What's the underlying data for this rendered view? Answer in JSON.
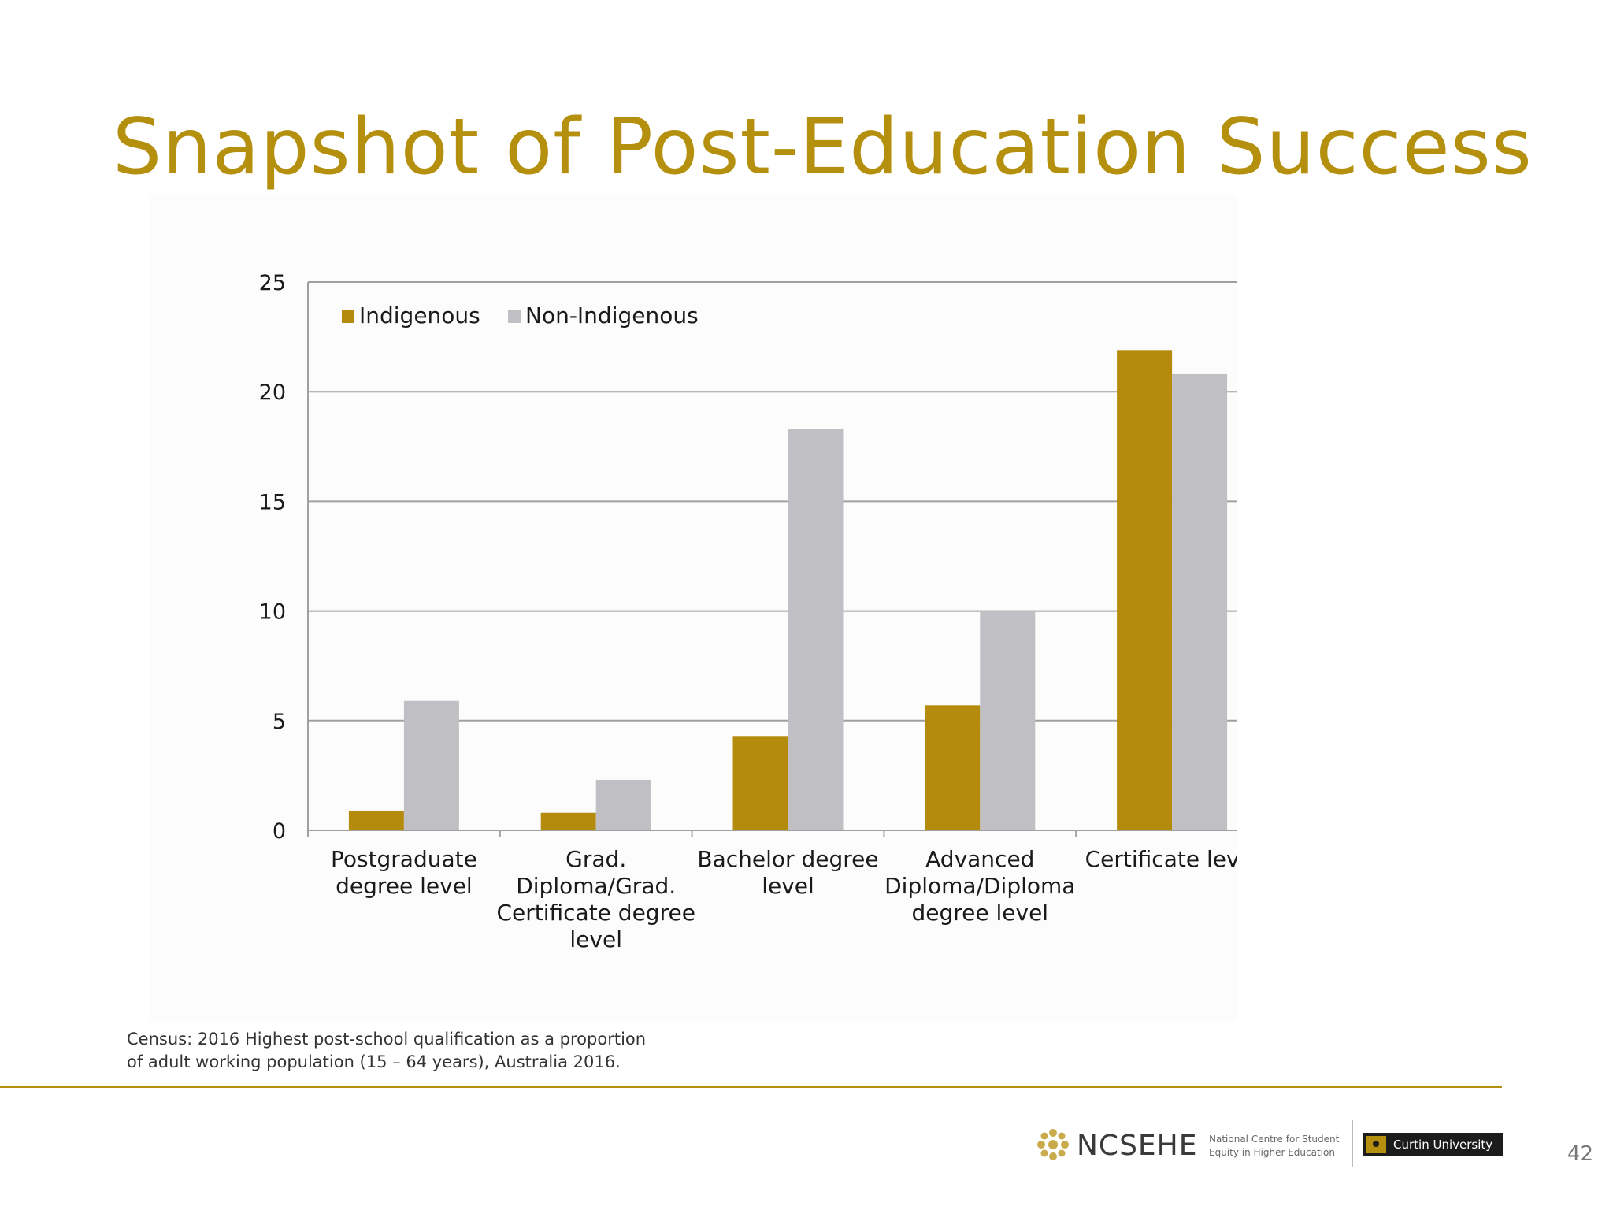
{
  "slide": {
    "title": "Snapshot of Post-Education Success",
    "page_number": "42"
  },
  "source_note": [
    "Census: 2016 Highest post-school qualification as a proportion",
    "of adult working population (15 – 64 years), Australia 2016."
  ],
  "footer": {
    "org_name": "NCSEHE",
    "org_tagline": [
      "National Centre for Student",
      "Equity in Higher Education"
    ],
    "university": "Curtin University"
  },
  "colors": {
    "accent": "#b5900f",
    "indigenous": "#b58b0e",
    "non_indigenous": "#c0bfc3",
    "gridline": "#a0a0a0"
  },
  "chart_data": {
    "type": "bar",
    "categories": [
      [
        "Postgraduate",
        "degree level"
      ],
      [
        "Grad.",
        "Diploma/Grad.",
        "Certificate degree",
        "level"
      ],
      [
        "Bachelor degree",
        "level"
      ],
      [
        "Advanced",
        "Diploma/Diploma",
        "degree level"
      ],
      [
        "Certificate level"
      ]
    ],
    "series": [
      {
        "name": "Indigenous",
        "values": [
          0.9,
          0.8,
          4.3,
          5.7,
          21.9
        ]
      },
      {
        "name": "Non-Indigenous",
        "values": [
          5.9,
          2.3,
          18.3,
          10.0,
          20.8
        ]
      }
    ],
    "ylim": [
      0,
      25
    ],
    "yticks": [
      "0",
      "5",
      "10",
      "15",
      "20",
      "25"
    ],
    "grid": true,
    "legend": "top-left"
  }
}
